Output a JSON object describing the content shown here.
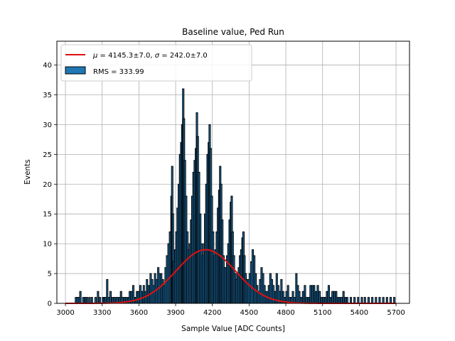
{
  "chart_data": {
    "type": "bar",
    "title": "Baseline value, Ped Run",
    "xlabel": "Sample Value [ADC Counts]",
    "ylabel": "Events",
    "xlim": [
      2930,
      5810
    ],
    "ylim": [
      0,
      44
    ],
    "xticks": [
      3000,
      3300,
      3600,
      3900,
      4200,
      4500,
      4800,
      5100,
      5400,
      5700
    ],
    "yticks": [
      0,
      5,
      10,
      15,
      20,
      25,
      30,
      35,
      40
    ],
    "grid": true,
    "legend_placement": "top-left",
    "bin_width": 12,
    "histogram": {
      "name": "RMS = 333.99",
      "color": "#1f77b4",
      "edge_color": "#000000",
      "bins": [
        [
          3080,
          1
        ],
        [
          3092,
          1
        ],
        [
          3104,
          1
        ],
        [
          3116,
          2
        ],
        [
          3140,
          1
        ],
        [
          3155,
          1
        ],
        [
          3170,
          1
        ],
        [
          3190,
          1
        ],
        [
          3210,
          1
        ],
        [
          3240,
          1
        ],
        [
          3260,
          2
        ],
        [
          3275,
          1
        ],
        [
          3300,
          1
        ],
        [
          3312,
          1
        ],
        [
          3320,
          1
        ],
        [
          3335,
          4
        ],
        [
          3348,
          1
        ],
        [
          3362,
          2
        ],
        [
          3378,
          1
        ],
        [
          3392,
          1
        ],
        [
          3410,
          1
        ],
        [
          3420,
          1
        ],
        [
          3435,
          1
        ],
        [
          3448,
          2
        ],
        [
          3460,
          1
        ],
        [
          3475,
          1
        ],
        [
          3490,
          1
        ],
        [
          3505,
          1
        ],
        [
          3520,
          2
        ],
        [
          3535,
          2
        ],
        [
          3548,
          3
        ],
        [
          3562,
          1
        ],
        [
          3578,
          2
        ],
        [
          3592,
          2
        ],
        [
          3606,
          3
        ],
        [
          3618,
          2
        ],
        [
          3634,
          3
        ],
        [
          3648,
          2
        ],
        [
          3660,
          4
        ],
        [
          3675,
          3
        ],
        [
          3690,
          5
        ],
        [
          3702,
          4
        ],
        [
          3714,
          3
        ],
        [
          3726,
          5
        ],
        [
          3740,
          4
        ],
        [
          3752,
          6
        ],
        [
          3764,
          5
        ],
        [
          3776,
          5
        ],
        [
          3790,
          4
        ],
        [
          3800,
          3
        ],
        [
          3812,
          6
        ],
        [
          3824,
          8
        ],
        [
          3836,
          10
        ],
        [
          3848,
          12
        ],
        [
          3860,
          18
        ],
        [
          3866,
          23
        ],
        [
          3872,
          15
        ],
        [
          3880,
          7
        ],
        [
          3890,
          9
        ],
        [
          3900,
          12
        ],
        [
          3910,
          16
        ],
        [
          3920,
          20
        ],
        [
          3930,
          25
        ],
        [
          3940,
          27
        ],
        [
          3948,
          30
        ],
        [
          3956,
          36
        ],
        [
          3962,
          31
        ],
        [
          3970,
          24
        ],
        [
          3980,
          18
        ],
        [
          3990,
          12
        ],
        [
          4000,
          9
        ],
        [
          4010,
          10
        ],
        [
          4020,
          14
        ],
        [
          4030,
          18
        ],
        [
          4040,
          22
        ],
        [
          4050,
          24
        ],
        [
          4060,
          26
        ],
        [
          4068,
          32
        ],
        [
          4075,
          28
        ],
        [
          4085,
          22
        ],
        [
          4095,
          15
        ],
        [
          4105,
          10
        ],
        [
          4115,
          8
        ],
        [
          4125,
          10
        ],
        [
          4135,
          15
        ],
        [
          4145,
          20
        ],
        [
          4155,
          25
        ],
        [
          4165,
          27
        ],
        [
          4172,
          30
        ],
        [
          4180,
          26
        ],
        [
          4190,
          18
        ],
        [
          4200,
          12
        ],
        [
          4210,
          8
        ],
        [
          4220,
          9
        ],
        [
          4230,
          12
        ],
        [
          4240,
          16
        ],
        [
          4250,
          19
        ],
        [
          4258,
          23
        ],
        [
          4266,
          20
        ],
        [
          4275,
          14
        ],
        [
          4285,
          8
        ],
        [
          4295,
          6
        ],
        [
          4305,
          6
        ],
        [
          4315,
          8
        ],
        [
          4325,
          10
        ],
        [
          4335,
          14
        ],
        [
          4345,
          17
        ],
        [
          4352,
          18
        ],
        [
          4360,
          12
        ],
        [
          4370,
          8
        ],
        [
          4380,
          5
        ],
        [
          4390,
          4
        ],
        [
          4400,
          5
        ],
        [
          4410,
          6
        ],
        [
          4420,
          8
        ],
        [
          4430,
          9
        ],
        [
          4440,
          11
        ],
        [
          4448,
          12
        ],
        [
          4456,
          8
        ],
        [
          4466,
          5
        ],
        [
          4476,
          4
        ],
        [
          4488,
          4
        ],
        [
          4500,
          5
        ],
        [
          4512,
          7
        ],
        [
          4524,
          9
        ],
        [
          4536,
          8
        ],
        [
          4548,
          5
        ],
        [
          4560,
          3
        ],
        [
          4572,
          2
        ],
        [
          4584,
          4
        ],
        [
          4596,
          6
        ],
        [
          4608,
          5
        ],
        [
          4620,
          3
        ],
        [
          4632,
          2
        ],
        [
          4644,
          2
        ],
        [
          4656,
          3
        ],
        [
          4668,
          5
        ],
        [
          4680,
          4
        ],
        [
          4692,
          3
        ],
        [
          4706,
          2
        ],
        [
          4720,
          5
        ],
        [
          4732,
          3
        ],
        [
          4745,
          2
        ],
        [
          4758,
          4
        ],
        [
          4772,
          2
        ],
        [
          4786,
          1
        ],
        [
          4800,
          2
        ],
        [
          4812,
          3
        ],
        [
          4826,
          1
        ],
        [
          4840,
          1
        ],
        [
          4852,
          2
        ],
        [
          4866,
          1
        ],
        [
          4880,
          5
        ],
        [
          4892,
          3
        ],
        [
          4904,
          2
        ],
        [
          4918,
          1
        ],
        [
          4935,
          2
        ],
        [
          4950,
          3
        ],
        [
          4965,
          1
        ],
        [
          4980,
          1
        ],
        [
          4996,
          3
        ],
        [
          5010,
          3
        ],
        [
          5025,
          3
        ],
        [
          5040,
          2
        ],
        [
          5055,
          3
        ],
        [
          5070,
          2
        ],
        [
          5085,
          1
        ],
        [
          5100,
          1
        ],
        [
          5115,
          1
        ],
        [
          5130,
          2
        ],
        [
          5145,
          3
        ],
        [
          5160,
          1
        ],
        [
          5175,
          2
        ],
        [
          5190,
          2
        ],
        [
          5205,
          2
        ],
        [
          5220,
          1
        ],
        [
          5235,
          1
        ],
        [
          5250,
          1
        ],
        [
          5265,
          2
        ],
        [
          5280,
          1
        ],
        [
          5295,
          1
        ],
        [
          5325,
          1
        ],
        [
          5355,
          1
        ],
        [
          5385,
          1
        ],
        [
          5415,
          1
        ],
        [
          5440,
          1
        ],
        [
          5470,
          1
        ],
        [
          5500,
          1
        ],
        [
          5530,
          1
        ],
        [
          5560,
          1
        ],
        [
          5590,
          1
        ],
        [
          5620,
          1
        ],
        [
          5650,
          1
        ],
        [
          5680,
          1
        ]
      ]
    },
    "fit": {
      "type": "gaussian",
      "label": "$\\mu = 4145.3 \\pm 7.0$, $\\sigma = 242.0 \\pm 7.0$",
      "label_parts": {
        "mu_symbol": "μ",
        "mu_text": " = 4145.3±7.0, ",
        "sigma_symbol": "σ",
        "sigma_text": " = 242.0±7.0"
      },
      "mu": 4145.3,
      "sigma": 242.0,
      "amplitude": 9.0,
      "x_range": [
        3000,
        5700
      ],
      "color": "#e01010"
    }
  }
}
